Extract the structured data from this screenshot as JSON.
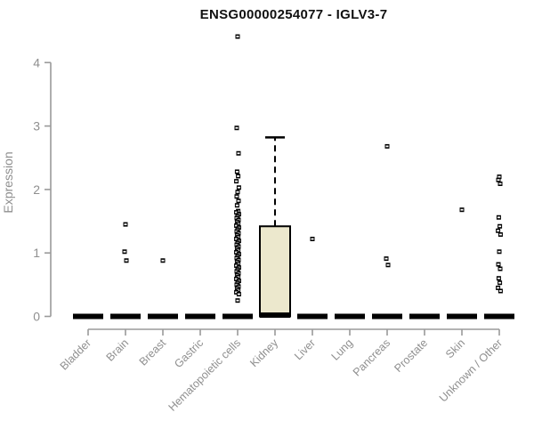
{
  "chart_data": {
    "type": "boxplot",
    "title": "ENSG00000254077 - IGLV3-7",
    "ylabel": "Expression",
    "xlabel": "",
    "ylim": [
      0,
      4.55
    ],
    "yticks": [
      0,
      1,
      2,
      3,
      4
    ],
    "grid": false,
    "legend": "none",
    "categories": [
      "Bladder",
      "Brain",
      "Breast",
      "Gastric",
      "Hematopoietic cells",
      "Kidney",
      "Liver",
      "Lung",
      "Pancreas",
      "Prostate",
      "Skin",
      "Unknown / Other"
    ],
    "series": [
      {
        "category": "Bladder",
        "q1": 0,
        "median": 0,
        "q3": 0,
        "whisker_low": 0,
        "whisker_high": 0,
        "outliers": []
      },
      {
        "category": "Brain",
        "q1": 0,
        "median": 0,
        "q3": 0,
        "whisker_low": 0,
        "whisker_high": 0,
        "outliers": [
          1.45,
          1.02,
          0.88
        ]
      },
      {
        "category": "Breast",
        "q1": 0,
        "median": 0,
        "q3": 0,
        "whisker_low": 0,
        "whisker_high": 0,
        "outliers": [
          0.88
        ]
      },
      {
        "category": "Gastric",
        "q1": 0,
        "median": 0,
        "q3": 0,
        "whisker_low": 0,
        "whisker_high": 0,
        "outliers": []
      },
      {
        "category": "Hematopoietic cells",
        "q1": 0,
        "median": 0,
        "q3": 0,
        "whisker_low": 0,
        "whisker_high": 0,
        "outliers": [
          4.41,
          2.97,
          2.57,
          2.28,
          2.21,
          2.13,
          2.03,
          1.96,
          1.89,
          1.82,
          1.75,
          1.66,
          1.64,
          1.61,
          1.58,
          1.55,
          1.52,
          1.49,
          1.46,
          1.43,
          1.4,
          1.37,
          1.34,
          1.31,
          1.28,
          1.25,
          1.22,
          1.19,
          1.16,
          1.13,
          1.1,
          1.07,
          1.04,
          1.01,
          0.98,
          0.95,
          0.92,
          0.89,
          0.86,
          0.83,
          0.8,
          0.77,
          0.74,
          0.71,
          0.68,
          0.65,
          0.62,
          0.59,
          0.56,
          0.53,
          0.5,
          0.47,
          0.44,
          0.41,
          0.38,
          0.35,
          0.25
        ]
      },
      {
        "category": "Kidney",
        "q1": 0,
        "median": 0.02,
        "q3": 1.42,
        "whisker_low": 0,
        "whisker_high": 2.82,
        "outliers": []
      },
      {
        "category": "Liver",
        "q1": 0,
        "median": 0,
        "q3": 0,
        "whisker_low": 0,
        "whisker_high": 0,
        "outliers": [
          1.22
        ]
      },
      {
        "category": "Lung",
        "q1": 0,
        "median": 0,
        "q3": 0,
        "whisker_low": 0,
        "whisker_high": 0,
        "outliers": []
      },
      {
        "category": "Pancreas",
        "q1": 0,
        "median": 0,
        "q3": 0,
        "whisker_low": 0,
        "whisker_high": 0,
        "outliers": [
          2.68,
          0.91,
          0.81
        ]
      },
      {
        "category": "Prostate",
        "q1": 0,
        "median": 0,
        "q3": 0,
        "whisker_low": 0,
        "whisker_high": 0,
        "outliers": []
      },
      {
        "category": "Skin",
        "q1": 0,
        "median": 0,
        "q3": 0,
        "whisker_low": 0,
        "whisker_high": 0,
        "outliers": [
          1.68
        ]
      },
      {
        "category": "Unknown / Other",
        "q1": 0,
        "median": 0,
        "q3": 0,
        "whisker_low": 0,
        "whisker_high": 0,
        "outliers": [
          2.2,
          2.15,
          2.09,
          1.56,
          1.42,
          1.35,
          1.29,
          1.02,
          0.82,
          0.75,
          0.6,
          0.53,
          0.45,
          0.4
        ]
      }
    ],
    "colors": {
      "background": "#ffffff",
      "box_fill": "#ece8cd",
      "box_stroke": "#000000",
      "median": "#000000",
      "marker": "#000000",
      "marker_center": "#ffffff",
      "axis": "#9a9a9a",
      "tick_label": "#8f8f8f",
      "title": "#111111"
    }
  }
}
